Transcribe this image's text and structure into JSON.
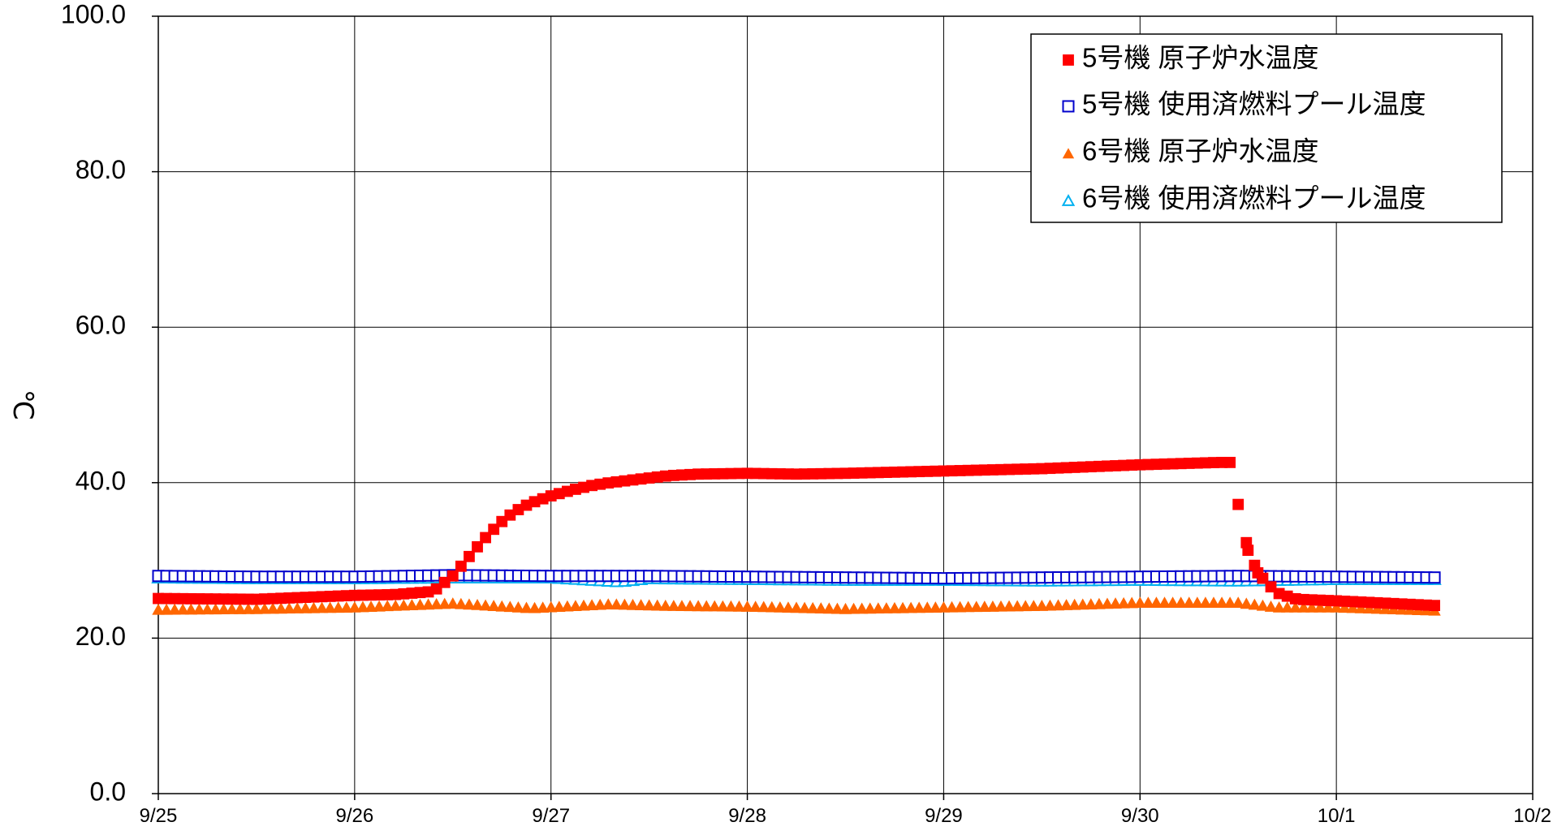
{
  "chart_data": {
    "type": "scatter",
    "title": "",
    "xlabel": "",
    "ylabel": "℃",
    "x_ticks": [
      "9/25",
      "9/26",
      "9/27",
      "9/28",
      "9/29",
      "9/30",
      "10/1",
      "10/2"
    ],
    "y_ticks": [
      "0.0",
      "20.0",
      "40.0",
      "60.0",
      "80.0",
      "100.0"
    ],
    "xlim": [
      0,
      7
    ],
    "ylim": [
      0,
      100
    ],
    "grid": true,
    "legend_position": "top-right",
    "series": [
      {
        "name": "5号機 原子炉水温度",
        "marker": "square-filled",
        "color": "#ff0000",
        "points": [
          [
            0.0,
            25.1
          ],
          [
            0.5,
            25.0
          ],
          [
            1.0,
            25.5
          ],
          [
            1.2,
            25.6
          ],
          [
            1.4,
            26.0
          ],
          [
            1.5,
            28.0
          ],
          [
            1.55,
            29.5
          ],
          [
            1.6,
            31.0
          ],
          [
            1.65,
            32.5
          ],
          [
            1.7,
            33.8
          ],
          [
            1.75,
            35.0
          ],
          [
            1.8,
            36.0
          ],
          [
            1.85,
            36.8
          ],
          [
            1.9,
            37.4
          ],
          [
            2.0,
            38.3
          ],
          [
            2.1,
            39.0
          ],
          [
            2.2,
            39.6
          ],
          [
            2.3,
            40.0
          ],
          [
            2.4,
            40.3
          ],
          [
            2.5,
            40.6
          ],
          [
            2.6,
            40.9
          ],
          [
            2.75,
            41.1
          ],
          [
            3.0,
            41.2
          ],
          [
            3.25,
            41.1
          ],
          [
            3.5,
            41.2
          ],
          [
            4.0,
            41.5
          ],
          [
            4.5,
            41.8
          ],
          [
            5.0,
            42.3
          ],
          [
            5.4,
            42.6
          ],
          [
            5.48,
            42.6
          ],
          [
            5.5,
            37.2
          ],
          [
            5.55,
            31.3
          ],
          [
            5.6,
            28.4
          ],
          [
            5.65,
            27.0
          ],
          [
            5.7,
            25.8
          ],
          [
            5.8,
            25.0
          ],
          [
            6.0,
            24.8
          ],
          [
            6.5,
            24.2
          ]
        ]
      },
      {
        "name": "5号機 使用済燃料プール温度",
        "marker": "square-open",
        "color": "#0000cc",
        "points": [
          [
            0.0,
            28.0
          ],
          [
            0.5,
            27.9
          ],
          [
            1.0,
            27.9
          ],
          [
            1.5,
            28.1
          ],
          [
            2.0,
            28.0
          ],
          [
            2.5,
            28.0
          ],
          [
            3.0,
            27.9
          ],
          [
            3.5,
            27.8
          ],
          [
            4.0,
            27.7
          ],
          [
            4.5,
            27.8
          ],
          [
            5.0,
            27.9
          ],
          [
            5.5,
            28.0
          ],
          [
            6.0,
            27.9
          ],
          [
            6.5,
            27.8
          ]
        ]
      },
      {
        "name": "6号機 原子炉水温度",
        "marker": "triangle-filled",
        "color": "#ff6600",
        "points": [
          [
            0.0,
            23.7
          ],
          [
            0.5,
            23.8
          ],
          [
            1.0,
            24.0
          ],
          [
            1.5,
            24.5
          ],
          [
            1.9,
            23.9
          ],
          [
            2.3,
            24.4
          ],
          [
            2.6,
            24.2
          ],
          [
            3.0,
            24.1
          ],
          [
            3.5,
            23.8
          ],
          [
            4.0,
            24.0
          ],
          [
            4.5,
            24.2
          ],
          [
            5.0,
            24.6
          ],
          [
            5.5,
            24.6
          ],
          [
            5.7,
            24.0
          ],
          [
            6.0,
            24.0
          ],
          [
            6.5,
            23.6
          ]
        ]
      },
      {
        "name": "6号機 使用済燃料プール温度",
        "marker": "triangle-open",
        "color": "#00b0f0",
        "points": [
          [
            0.0,
            27.8
          ],
          [
            0.5,
            27.7
          ],
          [
            1.0,
            27.7
          ],
          [
            1.5,
            27.8
          ],
          [
            2.0,
            27.8
          ],
          [
            2.35,
            27.3
          ],
          [
            2.5,
            27.7
          ],
          [
            3.0,
            27.6
          ],
          [
            3.5,
            27.5
          ],
          [
            4.0,
            27.5
          ],
          [
            4.5,
            27.4
          ],
          [
            5.0,
            27.5
          ],
          [
            5.5,
            27.4
          ],
          [
            6.0,
            27.6
          ],
          [
            6.5,
            27.6
          ]
        ]
      }
    ]
  }
}
